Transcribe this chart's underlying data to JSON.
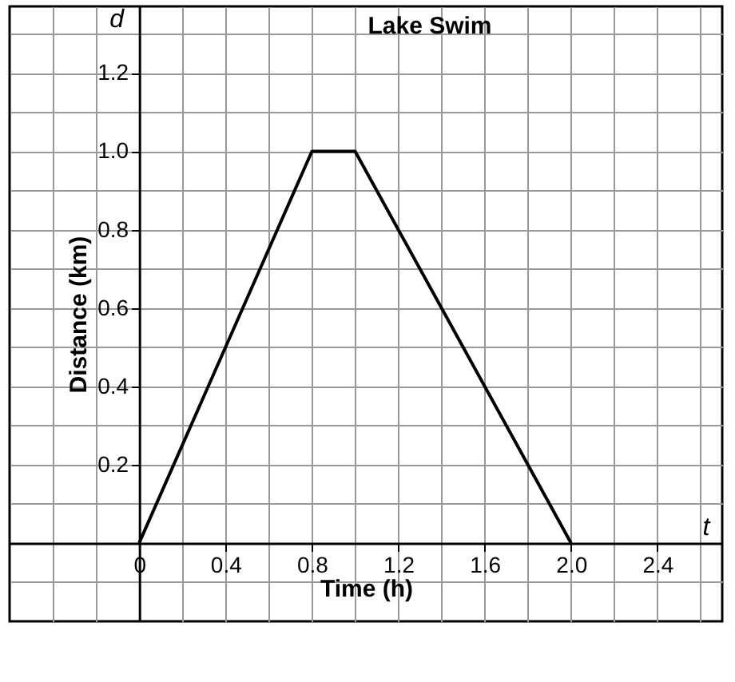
{
  "chart_data": {
    "type": "line",
    "title": "Lake Swim",
    "xlabel": "Time (h)",
    "ylabel": "Distance (km)",
    "annotations": [
      "d",
      "t"
    ],
    "x": [
      0,
      0.8,
      1.0,
      2.0
    ],
    "series": [
      {
        "color": "#000000",
        "values": [
          0,
          1.0,
          1.0,
          0
        ]
      }
    ],
    "xlim": [
      -0.6,
      2.7
    ],
    "ylim": [
      -0.2,
      1.37
    ],
    "xticks": [
      {
        "value": -0.4,
        "label": null
      },
      {
        "value": -0.2,
        "label": null
      },
      0,
      {
        "value": 0.2,
        "label": null
      },
      0.4,
      {
        "value": 0.6,
        "label": null
      },
      0.8,
      {
        "value": 1.0,
        "label": null
      },
      1.2,
      {
        "value": 1.4,
        "label": null
      },
      1.6,
      {
        "value": 1.8,
        "label": null
      },
      {
        "value": 2.0,
        "label": "2.0"
      },
      {
        "value": 2.2,
        "label": null
      },
      2.4,
      {
        "value": 2.6,
        "label": null
      }
    ],
    "yticks": [
      {
        "value": -0.1,
        "label": null
      },
      {
        "value": 0.1,
        "label": null
      },
      0.2,
      {
        "value": 0.3,
        "label": null
      },
      0.4,
      {
        "value": 0.5,
        "label": null
      },
      0.6,
      {
        "value": 0.7,
        "label": null
      },
      0.8,
      {
        "value": 0.9,
        "label": null
      },
      {
        "value": 1.0,
        "label": "1.0"
      },
      {
        "value": 1.1,
        "label": null
      },
      1.2,
      {
        "value": 1.3,
        "label": null
      }
    ],
    "grid": true,
    "marker": "none",
    "line_style": "solid"
  }
}
